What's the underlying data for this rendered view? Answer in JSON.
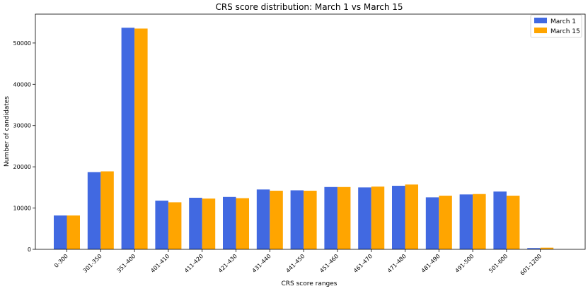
{
  "chart_data": {
    "type": "bar",
    "title": "CRS score distribution: March 1 vs March 15",
    "xlabel": "CRS score ranges",
    "ylabel": "Number of candidates",
    "categories": [
      "0-300",
      "301-350",
      "351-400",
      "401-410",
      "411-420",
      "421-430",
      "431-440",
      "441-450",
      "451-460",
      "461-470",
      "471-480",
      "481-490",
      "491-500",
      "501-600",
      "601-1200"
    ],
    "series": [
      {
        "name": "March 1",
        "color": "#4169e1",
        "values": [
          8200,
          18700,
          53700,
          11800,
          12500,
          12700,
          14500,
          14300,
          15100,
          15000,
          15400,
          12600,
          13300,
          14000,
          300
        ]
      },
      {
        "name": "March 15",
        "color": "#ffa500",
        "values": [
          8200,
          18900,
          53500,
          11400,
          12300,
          12400,
          14200,
          14200,
          15100,
          15200,
          15700,
          13000,
          13400,
          13000,
          400
        ]
      }
    ],
    "ylim": [
      0,
      57000
    ],
    "yticks": [
      0,
      10000,
      20000,
      30000,
      40000,
      50000
    ],
    "grid": false,
    "legend_position": "top-right"
  }
}
